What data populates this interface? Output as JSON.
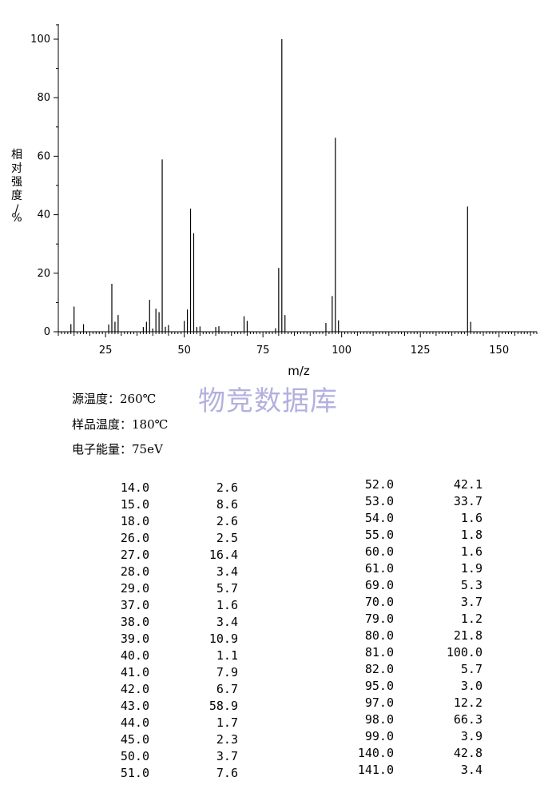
{
  "chart_data": {
    "type": "bar",
    "xlabel": "m/z",
    "ylabel": "相对强度/%",
    "xlim": [
      10,
      162
    ],
    "ylim": [
      0,
      100
    ],
    "xticks": [
      25,
      50,
      75,
      100,
      125,
      150
    ],
    "yticks": [
      0,
      20,
      40,
      60,
      80,
      100
    ],
    "grid": false,
    "peaks": [
      {
        "mz": 14.0,
        "intensity": 2.6
      },
      {
        "mz": 15.0,
        "intensity": 8.6
      },
      {
        "mz": 18.0,
        "intensity": 2.6
      },
      {
        "mz": 26.0,
        "intensity": 2.5
      },
      {
        "mz": 27.0,
        "intensity": 16.4
      },
      {
        "mz": 28.0,
        "intensity": 3.4
      },
      {
        "mz": 29.0,
        "intensity": 5.7
      },
      {
        "mz": 37.0,
        "intensity": 1.6
      },
      {
        "mz": 38.0,
        "intensity": 3.4
      },
      {
        "mz": 39.0,
        "intensity": 10.9
      },
      {
        "mz": 40.0,
        "intensity": 1.1
      },
      {
        "mz": 41.0,
        "intensity": 7.9
      },
      {
        "mz": 42.0,
        "intensity": 6.7
      },
      {
        "mz": 43.0,
        "intensity": 58.9
      },
      {
        "mz": 44.0,
        "intensity": 1.7
      },
      {
        "mz": 45.0,
        "intensity": 2.3
      },
      {
        "mz": 50.0,
        "intensity": 3.7
      },
      {
        "mz": 51.0,
        "intensity": 7.6
      },
      {
        "mz": 52.0,
        "intensity": 42.1
      },
      {
        "mz": 53.0,
        "intensity": 33.7
      },
      {
        "mz": 54.0,
        "intensity": 1.6
      },
      {
        "mz": 55.0,
        "intensity": 1.8
      },
      {
        "mz": 60.0,
        "intensity": 1.6
      },
      {
        "mz": 61.0,
        "intensity": 1.9
      },
      {
        "mz": 69.0,
        "intensity": 5.3
      },
      {
        "mz": 70.0,
        "intensity": 3.7
      },
      {
        "mz": 79.0,
        "intensity": 1.2
      },
      {
        "mz": 80.0,
        "intensity": 21.8
      },
      {
        "mz": 81.0,
        "intensity": 100.0
      },
      {
        "mz": 82.0,
        "intensity": 5.7
      },
      {
        "mz": 95.0,
        "intensity": 3.0
      },
      {
        "mz": 97.0,
        "intensity": 12.2
      },
      {
        "mz": 98.0,
        "intensity": 66.3
      },
      {
        "mz": 99.0,
        "intensity": 3.9
      },
      {
        "mz": 140.0,
        "intensity": 42.8
      },
      {
        "mz": 141.0,
        "intensity": 3.4
      }
    ]
  },
  "watermark": "物竞数据库",
  "conditions": {
    "source_temp": "源温度：260℃",
    "sample_temp": "样品温度：180℃",
    "electron_energy": "电子能量：75eV"
  },
  "table": {
    "left": [
      [
        "14.0",
        "2.6"
      ],
      [
        "15.0",
        "8.6"
      ],
      [
        "18.0",
        "2.6"
      ],
      [
        "26.0",
        "2.5"
      ],
      [
        "27.0",
        "16.4"
      ],
      [
        "28.0",
        "3.4"
      ],
      [
        "29.0",
        "5.7"
      ],
      [
        "37.0",
        "1.6"
      ],
      [
        "38.0",
        "3.4"
      ],
      [
        "39.0",
        "10.9"
      ],
      [
        "40.0",
        "1.1"
      ],
      [
        "41.0",
        "7.9"
      ],
      [
        "42.0",
        "6.7"
      ],
      [
        "43.0",
        "58.9"
      ],
      [
        "44.0",
        "1.7"
      ],
      [
        "45.0",
        "2.3"
      ],
      [
        "50.0",
        "3.7"
      ],
      [
        "51.0",
        "7.6"
      ]
    ],
    "right": [
      [
        "52.0",
        "42.1"
      ],
      [
        "53.0",
        "33.7"
      ],
      [
        "54.0",
        "1.6"
      ],
      [
        "55.0",
        "1.8"
      ],
      [
        "60.0",
        "1.6"
      ],
      [
        "61.0",
        "1.9"
      ],
      [
        "69.0",
        "5.3"
      ],
      [
        "70.0",
        "3.7"
      ],
      [
        "79.0",
        "1.2"
      ],
      [
        "80.0",
        "21.8"
      ],
      [
        "81.0",
        "100.0"
      ],
      [
        "82.0",
        "5.7"
      ],
      [
        "95.0",
        "3.0"
      ],
      [
        "97.0",
        "12.2"
      ],
      [
        "98.0",
        "66.3"
      ],
      [
        "99.0",
        "3.9"
      ],
      [
        "140.0",
        "42.8"
      ],
      [
        "141.0",
        "3.4"
      ]
    ]
  }
}
